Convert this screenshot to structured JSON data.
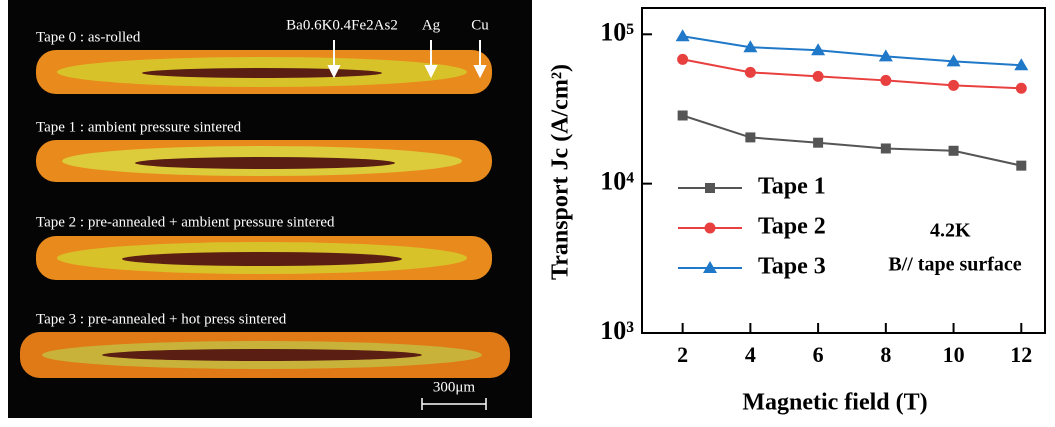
{
  "micrograph": {
    "labels": [
      "Tape 0 : as-rolled",
      "Tape 1 : ambient pressure sintered",
      "Tape 2 : pre-annealed + ambient pressure sintered",
      "Tape 3 : pre-annealed + hot press sintered"
    ],
    "annotations": [
      "Ba0.6K0.4Fe2As2",
      "Ag",
      "Cu"
    ],
    "scale_bar": "300μm"
  },
  "chart_data": {
    "type": "line",
    "x_label": "Magnetic field (T)",
    "y_label": "Transport Jc (A/cm²)",
    "x": [
      2,
      4,
      6,
      8,
      10,
      12
    ],
    "series": [
      {
        "name": "Tape 1",
        "color": "#555555",
        "marker": "square",
        "values": [
          28600,
          20400,
          18800,
          17200,
          16600,
          13200
        ]
      },
      {
        "name": "Tape 2",
        "color": "#e8403f",
        "marker": "circle",
        "values": [
          67900,
          55600,
          52300,
          49100,
          45500,
          43500
        ]
      },
      {
        "name": "Tape 3",
        "color": "#1f78c8",
        "marker": "triangle",
        "values": [
          97000,
          81900,
          78200,
          71100,
          65900,
          62000
        ]
      }
    ],
    "xlim": [
      0.8,
      12.7
    ],
    "xticks": [
      2,
      4,
      6,
      8,
      10,
      12
    ],
    "ylim": [
      1000,
      150000
    ],
    "log_y": true,
    "yticks": [
      {
        "value": 1000,
        "label": "10³"
      },
      {
        "value": 10000,
        "label": "10⁴"
      },
      {
        "value": 100000,
        "label": "10⁵"
      }
    ],
    "annotations": [
      "4.2K",
      "B// tape surface"
    ]
  }
}
